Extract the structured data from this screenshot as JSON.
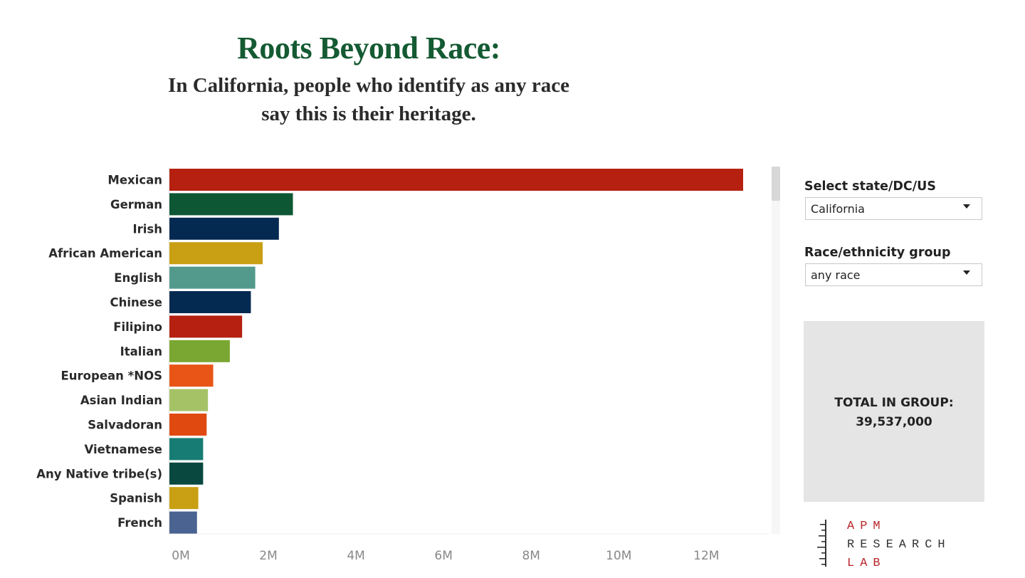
{
  "header": {
    "title": "Roots Beyond Race:",
    "subtitle_line1": "In California, people who identify as any race",
    "subtitle_line2": "say this is their heritage."
  },
  "controls": {
    "state_label": "Select state/DC/US",
    "state_value": "California",
    "race_label": "Race/ethnicity group",
    "race_value": "any race"
  },
  "total": {
    "label": "TOTAL IN GROUP:",
    "value": "39,537,000"
  },
  "logo": {
    "line1": "APM",
    "line2": "RESEARCH",
    "line3": "LAB"
  },
  "chart_data": {
    "type": "bar",
    "orientation": "horizontal",
    "categories": [
      "Mexican",
      "German",
      "Irish",
      "African American",
      "English",
      "Chinese",
      "Filipino",
      "Italian",
      "European *NOS",
      "Asian Indian",
      "Salvadoran",
      "Vietnamese",
      "Any Native tribe(s)",
      "Spanish",
      "French"
    ],
    "values": [
      13.1,
      2.82,
      2.5,
      2.13,
      1.96,
      1.86,
      1.66,
      1.38,
      1.0,
      0.88,
      0.85,
      0.77,
      0.77,
      0.66,
      0.63
    ],
    "colors": [
      "#b52010",
      "#0e5734",
      "#042a52",
      "#c9a014",
      "#539a8c",
      "#042a52",
      "#b52010",
      "#7aa632",
      "#e85517",
      "#a6c267",
      "#e04a10",
      "#177d74",
      "#08483f",
      "#c9a014",
      "#4a6391"
    ],
    "xlim": [
      0,
      13.8
    ],
    "xticks": [
      "0M",
      "2M",
      "4M",
      "6M",
      "8M",
      "10M",
      "12M"
    ],
    "xtick_values": [
      0,
      2,
      4,
      6,
      8,
      10,
      12
    ],
    "unit": "millions"
  }
}
